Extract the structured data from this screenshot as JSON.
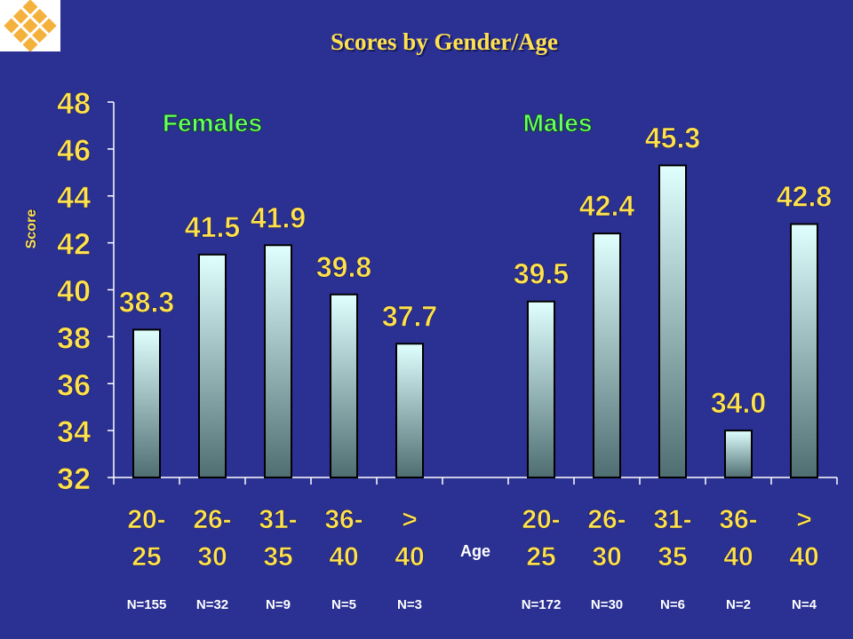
{
  "title": "Scores by Gender/Age",
  "chart_data": {
    "type": "bar",
    "ylabel": "Score",
    "xlabel": "Age",
    "ylim": [
      32,
      48
    ],
    "yticks": [
      32,
      34,
      36,
      38,
      40,
      42,
      44,
      46,
      48
    ],
    "group_labels": [
      "Females",
      "Males"
    ],
    "categories": [
      "20- 25",
      "26- 30",
      "31- 35",
      "36- 40",
      "> 40",
      "",
      "20- 25",
      "26- 30",
      "31- 35",
      "36- 40",
      "> 40"
    ],
    "values": [
      38.3,
      41.5,
      41.9,
      39.8,
      37.7,
      null,
      39.5,
      42.4,
      45.3,
      34.0,
      42.8
    ],
    "data_labels": [
      "38.3",
      "41.5",
      "41.9",
      "39.8",
      "37.7",
      "",
      "39.5",
      "42.4",
      "45.3",
      "34.0",
      "42.8"
    ],
    "n_labels": [
      "N=155",
      "N=32",
      "N=9",
      "N=5",
      "N=3",
      "",
      "N=172",
      "N=30",
      "N=6",
      "N=2",
      "N=4"
    ],
    "grid": false,
    "colors": {
      "background": "#2b3192",
      "label": "#ffe14d",
      "group_label": "#66ff66",
      "bar_top": "#e0ffff",
      "bar_bottom": "#4f6e72",
      "axis": "#ffffff"
    }
  },
  "logo": {
    "icon": "diamond-lattice-logo",
    "colors": [
      "#f4b13c",
      "#ffffff"
    ]
  }
}
